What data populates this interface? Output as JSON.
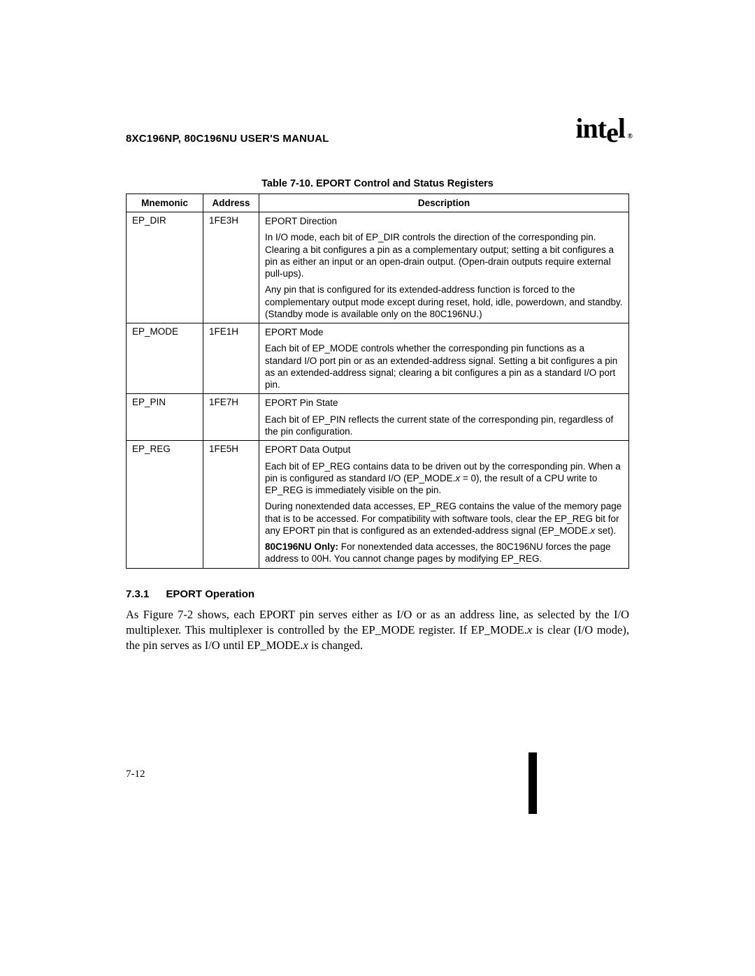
{
  "header": {
    "manual_title": "8XC196NP, 80C196NU USER'S MANUAL",
    "logo_text_1": "int",
    "logo_text_2": "e",
    "logo_text_3": "l",
    "logo_reg": "®"
  },
  "table": {
    "caption": "Table 7-10.  EPORT Control and Status Registers",
    "columns": {
      "mnemonic": "Mnemonic",
      "address": "Address",
      "description": "Description"
    },
    "rows": [
      {
        "mnemonic": "EP_DIR",
        "address": "1FE3H",
        "desc_title": "EPORT Direction",
        "desc_paras": [
          "In I/O mode, each bit of EP_DIR controls the direction of the corresponding pin. Clearing a bit configures a pin as a complementary output; setting a bit configures a pin as either an input or an open-drain output. (Open-drain outputs require external pull-ups).",
          "Any pin that is configured for its extended-address function is forced to the complementary output mode except during reset, hold, idle, powerdown, and standby. (Standby mode is available only on the 80C196NU.)"
        ]
      },
      {
        "mnemonic": "EP_MODE",
        "address": "1FE1H",
        "desc_title": "EPORT Mode",
        "desc_paras": [
          "Each bit of EP_MODE controls whether the corresponding pin functions as a standard I/O port pin or as an extended-address signal. Setting a bit configures a pin as an extended-address signal; clearing a bit configures a pin as a standard I/O port pin."
        ]
      },
      {
        "mnemonic": "EP_PIN",
        "address": "1FE7H",
        "desc_title": "EPORT Pin State",
        "desc_paras": [
          "Each bit of EP_PIN reflects the current state of the corresponding pin, regardless of the pin configuration."
        ]
      },
      {
        "mnemonic": "EP_REG",
        "address": "1FE5H",
        "desc_title": "EPORT Data Output",
        "ep_reg_p1_a": "Each bit of EP_REG contains data to be driven out by the corresponding pin. When a pin is configured as standard I/O (EP_MODE.",
        "ep_reg_p1_x": "x",
        "ep_reg_p1_b": " = 0), the result of a CPU write to EP_REG is immediately visible on the pin.",
        "ep_reg_p2_a": "During nonextended data accesses, EP_REG contains the value of the memory page that is to be accessed. For compatibility with software tools, clear the EP_REG bit for any EPORT pin that is configured as an extended-address signal (EP_MODE.",
        "ep_reg_p2_x": "x",
        "ep_reg_p2_b": " set).",
        "ep_reg_p3_bold": "80C196NU Only: ",
        "ep_reg_p3_rest": "For nonextended data accesses, the 80C196NU forces the page address to 00H. You cannot change pages by modifying EP_REG."
      }
    ]
  },
  "section": {
    "number": "7.3.1",
    "title": "EPORT Operation",
    "body_a": "As Figure 7-2 shows, each EPORT pin serves either as I/O or as an address line, as selected by the I/O multiplexer. This multiplexer is controlled by the EP_MODE register. If EP_MODE.",
    "body_x1": "x",
    "body_b": " is clear (I/O mode), the pin serves as I/O until EP_MODE.",
    "body_x2": "x",
    "body_c": " is changed."
  },
  "page_number": "7-12"
}
